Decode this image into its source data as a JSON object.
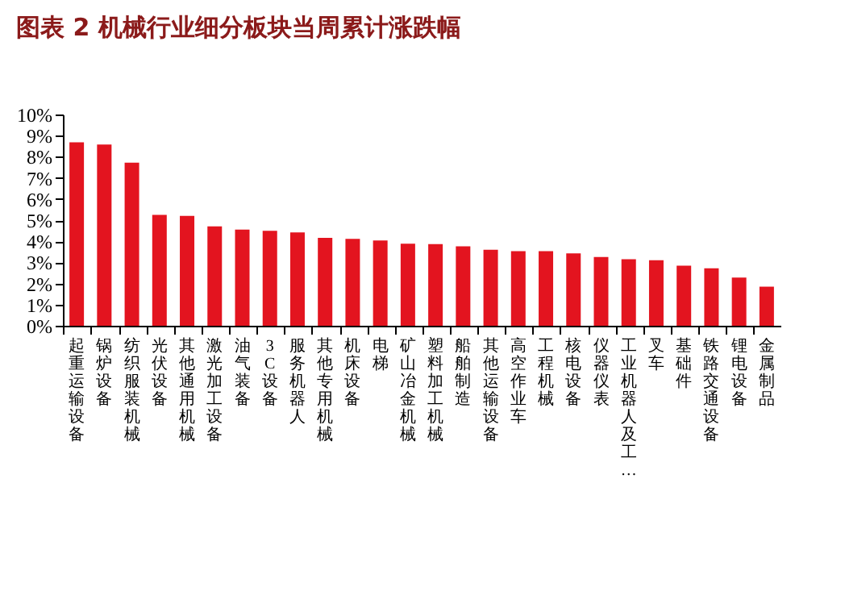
{
  "chart_data": {
    "type": "bar",
    "title": "图表 2  机械行业细分板块当周累计涨跌幅",
    "categories": [
      "起重运输设备",
      "锅炉设备",
      "纺织服装机械",
      "光伏设备",
      "其他通用机械",
      "激光加工设备",
      "油气装备",
      "3C设备",
      "服务机器人",
      "其他专用机械",
      "机床设备",
      "电梯",
      "矿山冶金机械",
      "塑料加工机械",
      "船舶制造",
      "其他运输设备",
      "高空作业车",
      "工程机械",
      "核电设备",
      "仪器仪表",
      "工业机器人及工…",
      "叉车",
      "基础件",
      "铁路交通设备",
      "锂电设备",
      "金属制品"
    ],
    "values": [
      8.68,
      8.58,
      7.72,
      5.25,
      5.2,
      4.7,
      4.55,
      4.49,
      4.42,
      4.16,
      4.11,
      4.04,
      3.88,
      3.86,
      3.76,
      3.6,
      3.53,
      3.53,
      3.43,
      3.25,
      3.15,
      3.1,
      2.84,
      2.72,
      2.28,
      1.85
    ],
    "color": "#e3141f",
    "ylim": [
      0,
      10
    ],
    "yticks": [
      {
        "value": 0,
        "label": "0%"
      },
      {
        "value": 1,
        "label": "1%"
      },
      {
        "value": 2,
        "label": "2%"
      },
      {
        "value": 3,
        "label": "3%"
      },
      {
        "value": 4,
        "label": "4%"
      },
      {
        "value": 5,
        "label": "5%"
      },
      {
        "value": 6,
        "label": "6%"
      },
      {
        "value": 7,
        "label": "7%"
      },
      {
        "value": 8,
        "label": "8%"
      },
      {
        "value": 9,
        "label": "9%"
      },
      {
        "value": 10,
        "label": "10%"
      }
    ],
    "grid": false
  }
}
